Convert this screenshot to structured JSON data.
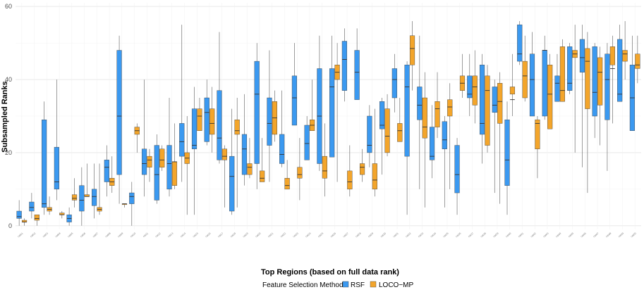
{
  "chart_data": {
    "type": "box",
    "title": "",
    "xlabel": "Top Regions (based on full data rank)",
    "ylabel": "Subsampled Ranks",
    "ylim": [
      -1,
      61
    ],
    "yticks": [
      0,
      20,
      40,
      60
    ],
    "grid": true,
    "legend": {
      "title": "Feature Selection Method",
      "position": "bottom",
      "entries": [
        "RSF",
        "LOCO−MP"
      ]
    },
    "colors": {
      "RSF": "#3b99f0",
      "LOCO−MP": "#f3a52b",
      "outline": "#3a3a3a",
      "grid": "#ececec"
    },
    "categories": [
      "cat01",
      "cat02",
      "cat03",
      "cat04",
      "cat05",
      "cat06",
      "cat07",
      "cat08",
      "cat09",
      "cat10",
      "cat11",
      "cat12",
      "cat13",
      "cat14",
      "cat15",
      "cat16",
      "cat17",
      "cat18",
      "cat19",
      "cat20",
      "cat21",
      "cat22",
      "cat23",
      "cat24",
      "cat25",
      "cat26",
      "cat27",
      "cat28",
      "cat29",
      "cat30",
      "cat31",
      "cat32",
      "cat33",
      "cat34",
      "cat35",
      "cat36",
      "cat37",
      "cat38",
      "cat39",
      "cat40",
      "cat41",
      "cat42",
      "cat43",
      "cat44",
      "cat45",
      "cat46",
      "cat47",
      "cat48",
      "cat49",
      "cat50"
    ],
    "series": [
      {
        "name": "RSF",
        "boxes": [
          [
            0,
            2,
            2.5,
            4,
            7
          ],
          [
            2,
            4,
            5,
            6.5,
            9
          ],
          [
            3,
            5,
            6,
            29,
            34
          ],
          [
            7,
            10,
            12,
            21.5,
            40
          ],
          [
            0,
            1,
            2,
            3,
            5
          ],
          [
            0,
            4,
            7,
            11,
            16
          ],
          [
            2,
            5.5,
            8,
            10,
            17
          ],
          [
            8,
            12,
            16,
            18,
            22
          ],
          [
            6,
            14,
            30,
            48,
            52
          ],
          [
            0,
            6,
            8,
            9,
            12
          ],
          [
            8,
            14,
            17,
            21,
            40
          ],
          [
            6,
            7,
            14,
            22,
            25
          ],
          [
            8,
            10,
            17,
            22,
            35
          ],
          [
            12,
            19,
            23,
            28,
            55
          ],
          [
            3,
            21,
            22,
            32,
            38
          ],
          [
            22,
            23,
            31,
            35,
            40
          ],
          [
            17,
            18,
            24,
            37,
            53
          ],
          [
            3,
            4,
            13.5,
            19,
            32
          ],
          [
            11,
            14,
            21,
            25,
            36
          ],
          [
            10,
            17,
            36,
            45,
            50
          ],
          [
            12,
            22,
            28,
            35,
            48
          ],
          [
            16,
            17,
            19.5,
            25,
            37
          ],
          [
            28,
            27.5,
            35,
            41,
            50
          ],
          [
            22,
            18,
            22.5,
            27.5,
            30
          ],
          [
            15,
            17,
            30,
            43,
            52
          ],
          [
            20,
            18.8,
            38,
            43,
            52
          ],
          [
            34,
            37,
            45.5,
            50.5,
            54
          ],
          [
            36,
            34.5,
            42,
            48,
            54
          ],
          [
            16,
            20,
            22,
            30,
            33
          ],
          [
            14,
            26.5,
            27.5,
            34,
            35
          ],
          [
            31,
            35,
            40,
            43,
            47
          ],
          [
            3,
            19,
            38,
            44,
            45
          ],
          [
            10,
            29,
            33,
            38,
            52
          ],
          [
            13,
            18,
            19,
            27,
            33
          ],
          [
            5,
            21,
            23.5,
            28.5,
            30
          ],
          [
            3,
            9,
            14,
            22,
            24
          ],
          [
            30,
            35,
            36,
            41,
            47
          ],
          [
            17,
            25,
            28,
            44,
            47
          ],
          [
            9,
            31,
            33,
            38,
            40
          ],
          [
            3,
            11,
            18,
            29,
            34
          ],
          [
            44,
            45,
            47,
            55,
            56
          ],
          [
            30,
            30,
            40,
            47,
            53
          ],
          [
            29,
            30,
            48,
            48,
            52
          ],
          [
            34,
            34,
            39,
            41,
            47
          ],
          [
            36,
            37,
            39,
            49,
            50
          ],
          [
            16,
            42,
            46,
            51,
            55
          ],
          [
            24,
            30,
            36.5,
            49,
            50
          ],
          [
            15,
            29,
            40,
            47,
            50
          ],
          [
            40,
            34,
            36,
            51,
            55
          ],
          [
            26,
            26,
            35,
            44,
            52
          ]
        ]
      },
      {
        "name": "LOCO−MP",
        "boxes": [
          [
            0,
            1,
            1,
            1.5,
            2
          ],
          [
            0,
            1.5,
            2,
            3,
            3
          ],
          [
            3,
            4,
            4.5,
            5,
            8
          ],
          [
            2,
            3,
            3,
            3.5,
            4
          ],
          [
            5,
            7,
            7.5,
            8.5,
            13
          ],
          [
            8,
            8,
            8,
            8.5,
            17
          ],
          [
            3,
            4,
            4.5,
            5,
            17
          ],
          [
            9,
            11,
            12,
            13,
            19
          ],
          [
            5,
            6,
            6,
            6,
            6
          ],
          [
            20,
            25,
            26,
            27,
            28
          ],
          [
            12,
            16,
            18,
            19,
            21
          ],
          [
            15,
            16,
            18,
            21,
            22
          ],
          [
            10,
            11,
            17.5,
            17.5,
            28
          ],
          [
            3,
            17,
            18.5,
            20,
            30
          ],
          [
            26,
            26,
            30,
            32,
            35
          ],
          [
            20,
            25,
            28,
            32,
            38
          ],
          [
            5,
            18,
            19,
            21,
            22
          ],
          [
            5,
            25,
            26,
            29,
            35
          ],
          [
            13,
            14,
            16,
            17,
            24
          ],
          [
            13,
            12,
            13,
            15,
            24
          ],
          [
            23,
            25,
            29.5,
            34,
            37
          ],
          [
            12,
            10,
            11,
            13,
            18
          ],
          [
            7,
            13,
            14,
            16,
            24
          ],
          [
            27,
            26,
            27.5,
            29,
            40
          ],
          [
            8,
            13,
            15,
            19,
            28
          ],
          [
            12,
            40,
            42,
            44,
            50
          ],
          [
            8,
            10,
            12,
            15,
            22
          ],
          [
            12,
            14,
            16,
            17,
            21
          ],
          [
            8,
            10,
            12.5,
            17,
            32
          ],
          [
            19,
            20,
            24.5,
            32,
            36
          ],
          [
            27,
            23,
            26,
            28,
            35
          ],
          [
            37,
            44,
            48.5,
            52,
            56
          ],
          [
            5,
            24,
            27,
            35,
            42
          ],
          [
            24,
            27,
            32,
            34,
            42
          ],
          [
            10,
            30,
            32.5,
            34.5,
            39
          ],
          [
            35,
            37,
            39,
            41,
            47
          ],
          [
            28,
            33,
            38,
            41,
            48
          ],
          [
            20,
            22,
            37,
            41,
            44
          ],
          [
            6,
            28,
            34,
            39,
            42
          ],
          [
            30,
            36,
            34.5,
            38,
            47
          ],
          [
            34,
            35,
            41,
            45,
            52
          ],
          [
            13,
            21,
            28,
            29,
            30
          ],
          [
            30,
            26.5,
            36,
            44,
            47
          ],
          [
            34,
            34,
            37,
            49,
            51
          ],
          [
            20,
            46,
            47,
            48,
            55
          ],
          [
            9,
            32,
            45,
            48.5,
            53
          ],
          [
            22,
            33,
            42,
            46,
            49
          ],
          [
            28,
            44,
            43,
            49,
            52
          ],
          [
            40,
            45,
            47,
            48,
            56
          ],
          [
            39,
            43,
            44,
            47,
            52
          ]
        ]
      }
    ]
  }
}
